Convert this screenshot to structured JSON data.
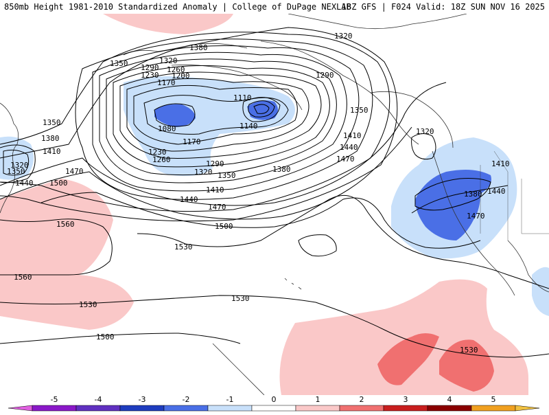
{
  "header": {
    "title_left": "850mb Height 1981-2010 Standardized Anomaly | College of DuPage NEXLAB",
    "title_right": "18Z GFS | F024 Valid: 18Z SUN NOV 16 2025"
  },
  "colors": {
    "neg5": "#e060e0",
    "neg4": "#8a18c8",
    "neg3": "#1e3cbe",
    "neg2": "#4a6fe6",
    "neg1": "#c8e0fa",
    "pos1": "#fac8c8",
    "pos2": "#f07070",
    "pos3": "#c81e1e",
    "pos4": "#8a0000",
    "pos5": "#f0a020",
    "contour": "#000000",
    "coast": "#333333"
  },
  "contour_labels": [
    "1320",
    "1380",
    "1350",
    "1290",
    "1230",
    "1320",
    "1260",
    "1200",
    "1170",
    "1110",
    "1080",
    "1140",
    "1170",
    "1230",
    "1260",
    "1290",
    "1320",
    "1350",
    "1380",
    "1410",
    "1440",
    "1470",
    "1500",
    "1530",
    "1560",
    "1560",
    "1530",
    "1530",
    "1500",
    "1530",
    "1290",
    "1350",
    "1320",
    "1380",
    "1410",
    "1440",
    "1470",
    "1350",
    "1380",
    "1410",
    "1440",
    "1470",
    "1320",
    "1350",
    "1440",
    "1500",
    "1410",
    "1470"
  ],
  "colorbar": {
    "labels": [
      "-5",
      "-4",
      "-3",
      "-2",
      "-1",
      "0",
      "1",
      "2",
      "3",
      "4",
      "5"
    ]
  }
}
